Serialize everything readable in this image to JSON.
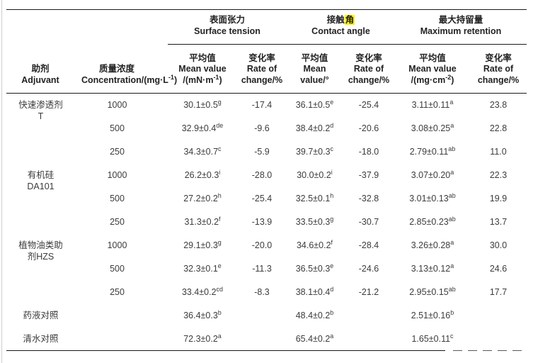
{
  "colors": {
    "rule": "#1a1a1a",
    "header_text": "#222222",
    "body_text": "#3c3c3c",
    "highlight": "#fff200",
    "dashed_segment": "#5a5a5a"
  },
  "table": {
    "spanners": [
      {
        "zh_pre": "表面张力",
        "zh_hl": "",
        "en": "Surface tension"
      },
      {
        "zh_pre": "接触",
        "zh_hl": "角",
        "en": "Contact angle"
      },
      {
        "zh_pre": "最大持留量",
        "zh_hl": "",
        "en": "Maximum retention"
      }
    ],
    "columns": [
      {
        "lines": [
          "助剂",
          "Adjuvant"
        ]
      },
      {
        "lines": [
          "质量浓度",
          "Concentration/(mg·L^{-1})"
        ]
      },
      {
        "lines": [
          "平均值",
          "Mean value",
          "/(mN·m^{-1})"
        ]
      },
      {
        "lines": [
          "变化率",
          "Rate of",
          "change/%"
        ]
      },
      {
        "lines": [
          "平均值",
          "Mean",
          "value/°"
        ]
      },
      {
        "lines": [
          "变化率",
          "Rate of",
          "change/%"
        ]
      },
      {
        "lines": [
          "平均值",
          "Mean value",
          "/(mg·cm^{-2})"
        ]
      },
      {
        "lines": [
          "变化率",
          "Rate of",
          "change/%"
        ]
      }
    ],
    "rows": [
      {
        "adjuvant": [
          "快速渗透剂",
          "T"
        ],
        "rowspan": 3,
        "cells": [
          "1000",
          "30.1±0.5^{g}",
          "-17.4",
          "36.1±0.5^{e}",
          "-25.4",
          "3.11±0.11^{a}",
          "23.8"
        ]
      },
      {
        "cells": [
          "500",
          "32.9±0.4^{de}",
          "-9.6",
          "38.4±0.2^{d}",
          "-20.6",
          "3.08±0.25^{a}",
          "22.8"
        ]
      },
      {
        "cells": [
          "250",
          "34.3±0.7^{c}",
          "-5.9",
          "39.7±0.3^{c}",
          "-18.0",
          "2.79±0.11^{ab}",
          "11.0"
        ]
      },
      {
        "adjuvant": [
          "有机硅",
          "DA101"
        ],
        "rowspan": 3,
        "cells": [
          "1000",
          "26.2±0.3^{i}",
          "-28.0",
          "30.0±0.2^{i}",
          "-37.9",
          "3.07±0.20^{a}",
          "22.3"
        ]
      },
      {
        "cells": [
          "500",
          "27.2±0.2^{h}",
          "-25.4",
          "32.5±0.1^{h}",
          "-32.8",
          "3.01±0.13^{ab}",
          "19.9"
        ]
      },
      {
        "cells": [
          "250",
          "31.3±0.2^{f}",
          "-13.9",
          "33.5±0.3^{g}",
          "-30.7",
          "2.85±0.23^{ab}",
          "13.7"
        ]
      },
      {
        "adjuvant": [
          "植物油类助",
          "剂HZS"
        ],
        "rowspan": 3,
        "cells": [
          "1000",
          "29.1±0.3^{g}",
          "-20.0",
          "34.6±0.2^{f}",
          "-28.4",
          "3.26±0.28^{a}",
          "30.0"
        ]
      },
      {
        "cells": [
          "500",
          "32.3±0.1^{e}",
          "-11.3",
          "36.5±0.3^{e}",
          "-24.6",
          "3.13±0.12^{a}",
          "24.6"
        ]
      },
      {
        "cells": [
          "250",
          "33.4±0.2^{cd}",
          "-8.3",
          "38.1±0.4^{d}",
          "-21.2",
          "2.95±0.15^{ab}",
          "17.7"
        ]
      },
      {
        "adjuvant": [
          "药液对照"
        ],
        "rowspan": 1,
        "cells": [
          "",
          "36.4±0.3^{b}",
          "",
          "48.4±0.2^{b}",
          "",
          "2.51±0.16^{b}",
          ""
        ]
      },
      {
        "adjuvant": [
          "清水对照"
        ],
        "rowspan": 1,
        "cells": [
          "",
          "72.3±0.2^{a}",
          "",
          "65.4±0.2^{a}",
          "",
          "1.65±0.11^{c}",
          ""
        ]
      }
    ]
  }
}
